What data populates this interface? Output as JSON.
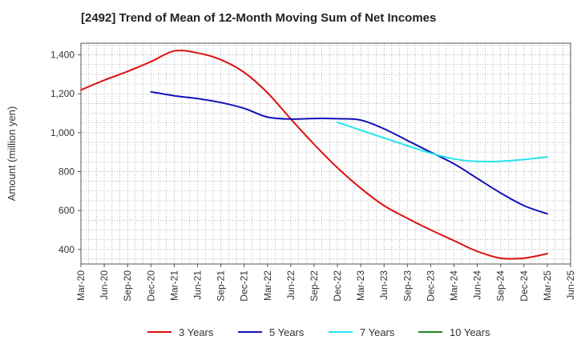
{
  "chart_data": {
    "type": "line",
    "title": "[2492]  Trend of Mean of 12-Month Moving Sum of Net Incomes",
    "xlabel": "",
    "ylabel": "Amount (million yen)",
    "ylim": [
      325,
      1460
    ],
    "yticks": [
      400,
      600,
      800,
      1000,
      1200,
      1400
    ],
    "ytick_labels": [
      "400",
      "600",
      "800",
      "1,000",
      "1,200",
      "1,400"
    ],
    "categories": [
      "Mar-20",
      "Jun-20",
      "Sep-20",
      "Dec-20",
      "Mar-21",
      "Jun-21",
      "Sep-21",
      "Dec-21",
      "Mar-22",
      "Jun-22",
      "Sep-22",
      "Dec-22",
      "Mar-23",
      "Jun-23",
      "Sep-23",
      "Dec-23",
      "Mar-24",
      "Jun-24",
      "Sep-24",
      "Dec-24",
      "Mar-25",
      "Jun-25"
    ],
    "grid": true,
    "legend_position": "bottom",
    "series": [
      {
        "name": "3 Years",
        "color": "#dd1111",
        "values": [
          1220,
          1270,
          1315,
          1365,
          1420,
          1410,
          1375,
          1310,
          1205,
          1070,
          940,
          820,
          715,
          625,
          560,
          500,
          445,
          390,
          355,
          355,
          378,
          null
        ]
      },
      {
        "name": "5 Years",
        "color": "#1111bb",
        "values": [
          null,
          null,
          null,
          1210,
          1190,
          1175,
          1155,
          1125,
          1080,
          1070,
          1073,
          1072,
          1065,
          1020,
          960,
          900,
          840,
          765,
          690,
          625,
          583,
          null
        ]
      },
      {
        "name": "7 Years",
        "color": "#22e5ee",
        "values": [
          null,
          null,
          null,
          null,
          null,
          null,
          null,
          null,
          null,
          null,
          null,
          1053,
          1013,
          973,
          933,
          895,
          865,
          852,
          853,
          862,
          875,
          null
        ]
      },
      {
        "name": "10 Years",
        "color": "#228822",
        "values": [
          null,
          null,
          null,
          null,
          null,
          null,
          null,
          null,
          null,
          null,
          null,
          null,
          null,
          null,
          null,
          null,
          null,
          null,
          null,
          null,
          null,
          null
        ]
      }
    ]
  }
}
